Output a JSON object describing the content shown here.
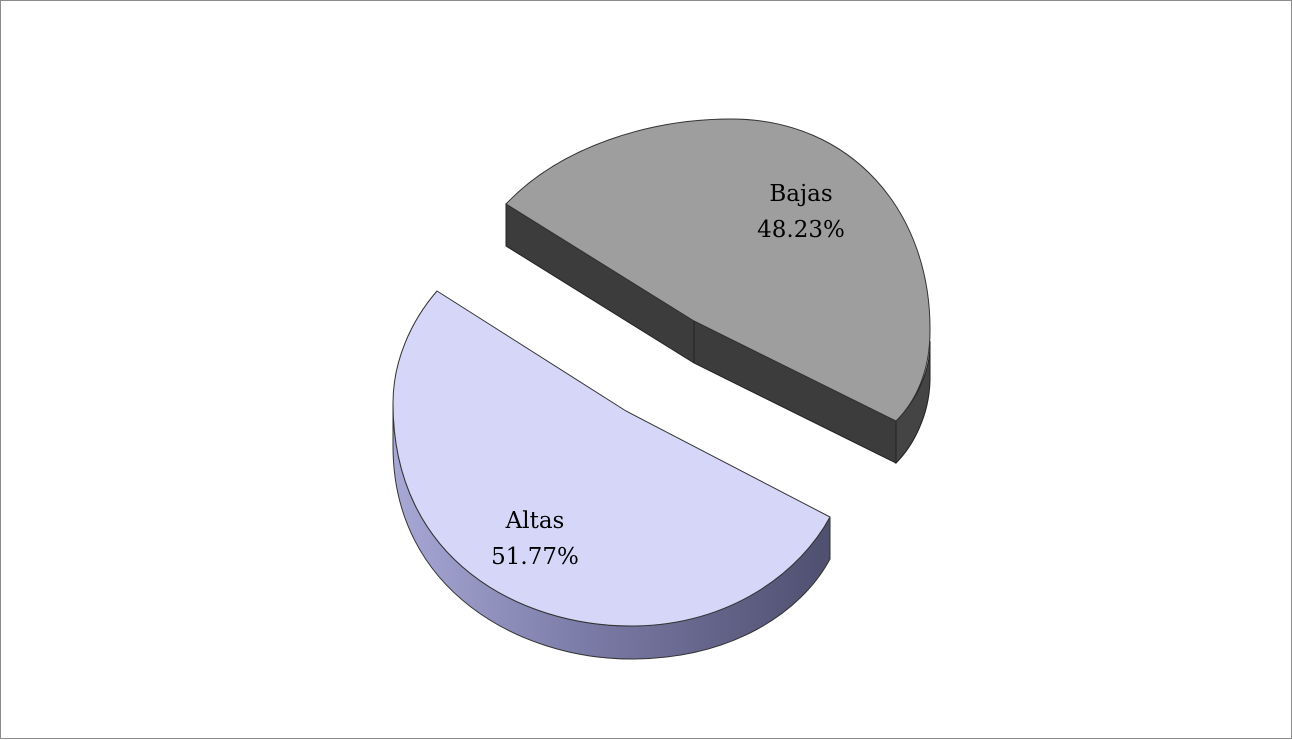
{
  "chart_data": {
    "type": "pie",
    "title": "",
    "style": "3d-exploded",
    "legend": "none",
    "slices": [
      {
        "label": "Bajas",
        "value": 48.23,
        "value_label": "48.23%",
        "color": "#9e9e9e",
        "side_color": "#3c3c3c"
      },
      {
        "label": "Altas",
        "value": 51.77,
        "value_label": "51.77%",
        "color": "#d6d6f9",
        "side_color": "#6b6b93"
      }
    ]
  }
}
